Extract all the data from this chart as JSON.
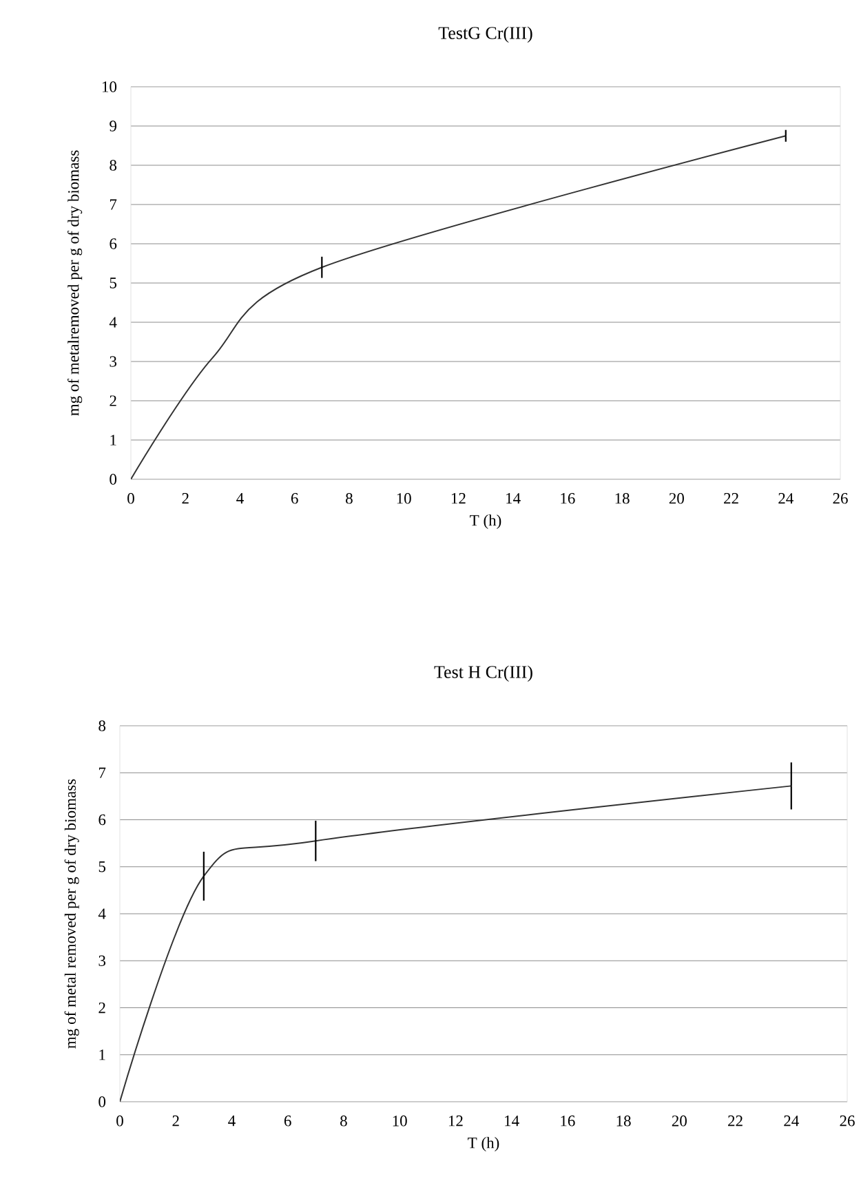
{
  "chart_data": [
    {
      "type": "line",
      "title": "TestG Cr(III)",
      "xlabel": "T (h)",
      "ylabel": "mg of metalremoved per g of dry biomass",
      "x": [
        0,
        3,
        7,
        24
      ],
      "xlim": [
        0,
        26
      ],
      "ylim": [
        0,
        10
      ],
      "xticks": [
        0,
        2,
        4,
        6,
        8,
        10,
        12,
        14,
        16,
        18,
        20,
        22,
        24,
        26
      ],
      "yticks": [
        0,
        1,
        2,
        3,
        4,
        5,
        6,
        7,
        8,
        9,
        10
      ],
      "grid": "y",
      "series": [
        {
          "color": "#333333",
          "values": [
            0,
            3.1,
            5.4,
            8.75
          ],
          "errors": [
            null,
            null,
            0.27,
            0.15
          ]
        }
      ]
    },
    {
      "type": "line",
      "title": "Test H Cr(III)",
      "xlabel": "T  (h)",
      "ylabel": "mg of metal removed per g of dry biomass",
      "x": [
        0,
        3,
        7,
        24
      ],
      "xlim": [
        0,
        26
      ],
      "ylim": [
        0,
        8
      ],
      "xticks": [
        0,
        2,
        4,
        6,
        8,
        10,
        12,
        14,
        16,
        18,
        20,
        22,
        24,
        26
      ],
      "yticks": [
        0,
        1,
        2,
        3,
        4,
        5,
        6,
        7,
        8
      ],
      "grid": "y",
      "series": [
        {
          "color": "#333333",
          "values": [
            0,
            4.8,
            5.55,
            6.72
          ],
          "errors": [
            null,
            0.52,
            0.43,
            0.5
          ]
        }
      ]
    }
  ]
}
